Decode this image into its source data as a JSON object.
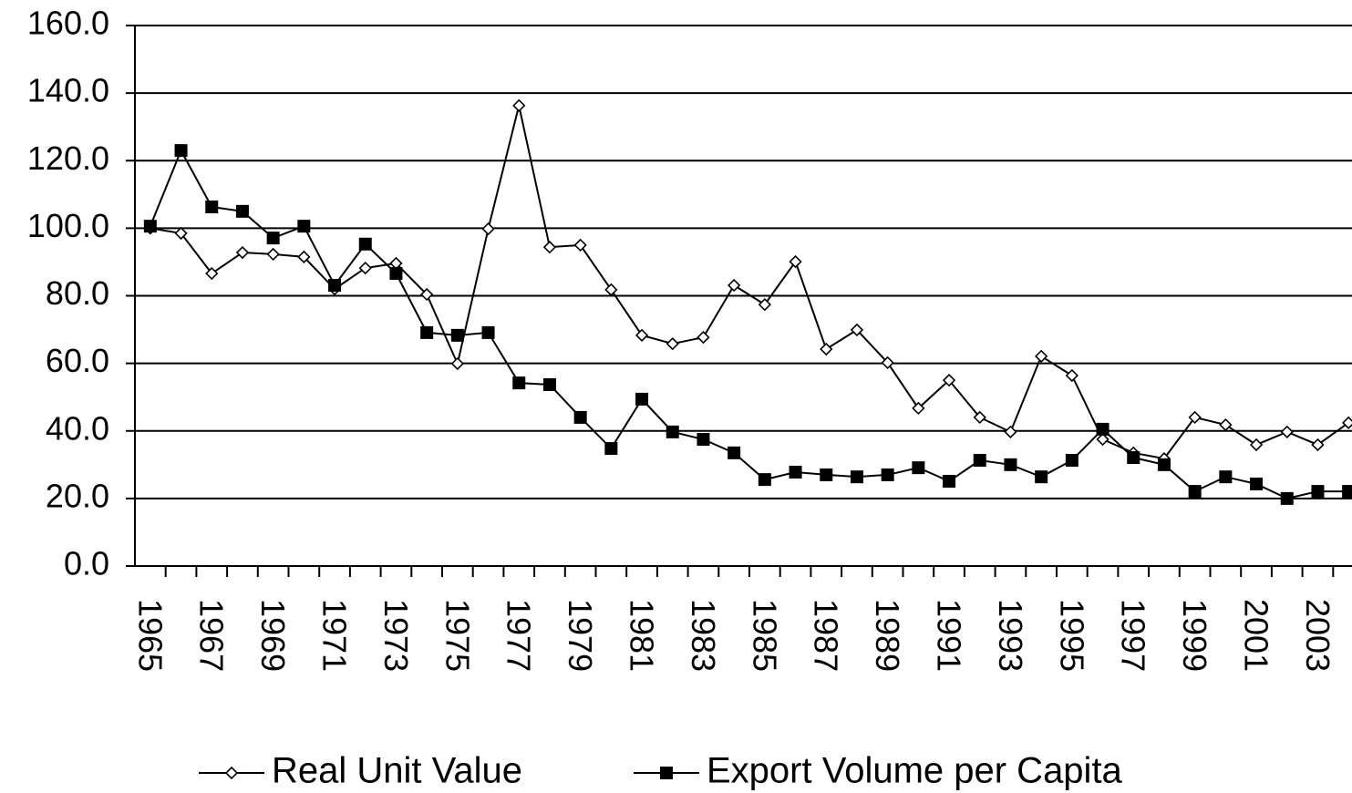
{
  "chart_data": {
    "type": "line",
    "categories": [
      "1965",
      null,
      "1967",
      null,
      "1969",
      null,
      "1971",
      null,
      "1973",
      null,
      "1975",
      null,
      "1977",
      null,
      "1979",
      null,
      "1981",
      null,
      "1983",
      null,
      "1985",
      null,
      "1987",
      null,
      "1989",
      null,
      "1991",
      null,
      "1993",
      null,
      "1995",
      null,
      "1997",
      null,
      "1999",
      null,
      "2001",
      null,
      "2003",
      null
    ],
    "series": [
      {
        "name": "Real Unit Value",
        "color": "#000000",
        "marker": "diamond",
        "values": [
          100.0,
          98.5,
          86.6,
          92.8,
          92.3,
          91.5,
          82.0,
          88.2,
          89.6,
          80.4,
          59.9,
          99.8,
          136.3,
          94.4,
          95.0,
          81.8,
          68.3,
          65.8,
          67.7,
          83.1,
          77.4,
          90.1,
          64.2,
          69.9,
          60.2,
          46.7,
          55.0,
          44.0,
          39.7,
          62.1,
          56.4,
          37.5,
          33.5,
          31.8,
          44.0,
          41.8,
          35.9,
          39.7,
          35.9,
          42.4
        ]
      },
      {
        "name": "Export Volume per Capita",
        "color": "#000000",
        "marker": "square",
        "values": [
          100.6,
          123.0,
          106.3,
          105.0,
          97.1,
          100.6,
          83.1,
          95.3,
          86.6,
          69.1,
          68.3,
          69.1,
          54.2,
          53.7,
          44.0,
          34.8,
          49.4,
          39.7,
          37.5,
          33.5,
          25.6,
          27.8,
          27.0,
          26.4,
          27.0,
          29.1,
          25.1,
          31.3,
          30.0,
          26.4,
          31.3,
          40.5,
          32.1,
          30.0,
          22.1,
          26.4,
          24.3,
          20.0,
          22.1,
          22.1
        ]
      }
    ],
    "ylim": [
      0,
      160
    ],
    "yticks": [
      {
        "value": 0,
        "label": "0.0"
      },
      {
        "value": 20,
        "label": "20.0"
      },
      {
        "value": 40,
        "label": "40.0"
      },
      {
        "value": 60,
        "label": "60.0"
      },
      {
        "value": 80,
        "label": "80.0"
      },
      {
        "value": 100,
        "label": "100.0"
      },
      {
        "value": 120,
        "label": "120.0"
      },
      {
        "value": 140,
        "label": "140.0"
      },
      {
        "value": 160,
        "label": "160.0"
      }
    ],
    "grid": true,
    "legend": "bottom"
  }
}
